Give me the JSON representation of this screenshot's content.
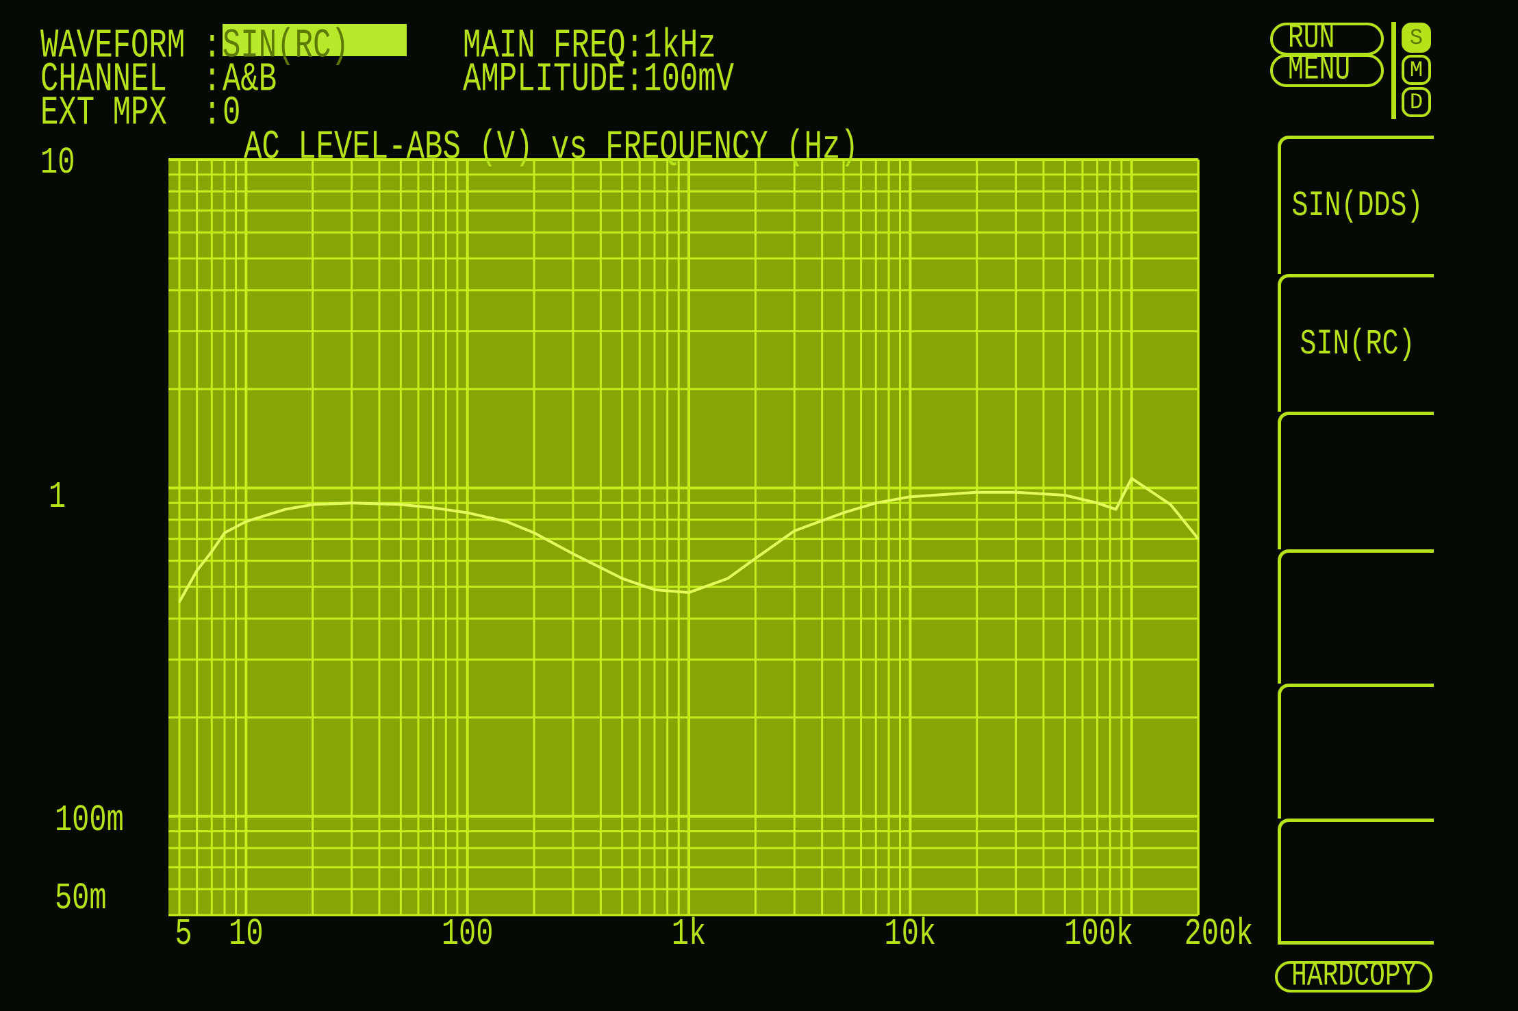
{
  "header": {
    "waveform_label": "WAVEFORM :",
    "waveform_value": "SIN(RC)",
    "channel_label": "CHANNEL  :",
    "channel_value": "A&B",
    "ext_mpx_label": "EXT MPX  :",
    "ext_mpx_value": "0",
    "main_freq": "MAIN FREQ:1kHz",
    "amplitude": "AMPLITUDE:100mV"
  },
  "status": {
    "run_label": "RUN",
    "menu_label": "MENU",
    "modes": [
      {
        "label": "S",
        "active": true
      },
      {
        "label": "M",
        "active": false
      },
      {
        "label": "D",
        "active": false
      }
    ]
  },
  "softkeys": [
    {
      "label": "SIN(DDS)"
    },
    {
      "label": "SIN(RC)"
    },
    {
      "label": ""
    },
    {
      "label": ""
    },
    {
      "label": ""
    },
    {
      "label": ""
    }
  ],
  "hardcopy_label": "HARDCOPY",
  "colors": {
    "background": "#070904",
    "text": "#b6e21a",
    "plot_background": "#87a504",
    "grid": "#c6ee1c",
    "trace": "#e2fb5a"
  },
  "chart_data": {
    "type": "line",
    "title": "AC LEVEL-ABS (V) vs FREQUENCY (Hz)",
    "x_scale": "log",
    "y_scale": "log",
    "xlim": [
      5,
      200000
    ],
    "ylim": [
      0.05,
      10
    ],
    "grid": true,
    "x_tick_labels": [
      {
        "value": 5,
        "label": "5"
      },
      {
        "value": 10,
        "label": "10"
      },
      {
        "value": 100,
        "label": "100"
      },
      {
        "value": 1000,
        "label": "1k"
      },
      {
        "value": 10000,
        "label": "10k"
      },
      {
        "value": 100000,
        "label": "100k"
      },
      {
        "value": 200000,
        "label": "200k"
      }
    ],
    "y_tick_labels": [
      {
        "value": 10,
        "label": "10"
      },
      {
        "value": 1,
        "label": "1"
      },
      {
        "value": 0.1,
        "label": "100m"
      },
      {
        "value": 0.05,
        "label": "50m"
      }
    ],
    "series": [
      {
        "x": [
          5,
          6,
          7,
          8,
          10,
          15,
          20,
          30,
          50,
          70,
          100,
          150,
          200,
          300,
          500,
          700,
          1000,
          1500,
          2000,
          3000,
          5000,
          7000,
          10000,
          20000,
          30000,
          50000,
          70000,
          85000,
          100000,
          150000,
          200000
        ],
        "y": [
          0.45,
          0.56,
          0.64,
          0.73,
          0.79,
          0.86,
          0.89,
          0.9,
          0.89,
          0.87,
          0.84,
          0.79,
          0.73,
          0.63,
          0.53,
          0.49,
          0.48,
          0.53,
          0.61,
          0.74,
          0.84,
          0.9,
          0.94,
          0.97,
          0.97,
          0.95,
          0.9,
          0.86,
          1.07,
          0.89,
          0.7
        ]
      }
    ]
  }
}
